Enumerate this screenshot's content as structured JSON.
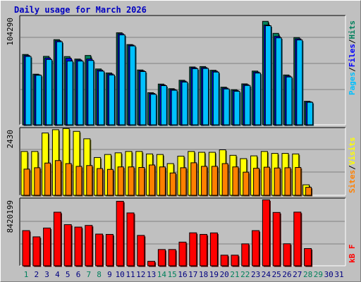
{
  "title": "Daily usage for March 2026",
  "colors": {
    "hits": "#00805c",
    "files": "#0000ff",
    "pages": "#00c0ff",
    "visits": "#ffff00",
    "sites": "#ff8000",
    "kbytes": "#ff0000",
    "plot_bg": "#c0c0c0",
    "weekend_label": "#00805c",
    "weekday_label": "#000080"
  },
  "chart_data": [
    {
      "type": "bar",
      "title": "Daily usage for March 2026",
      "x": [
        1,
        2,
        3,
        4,
        5,
        6,
        7,
        8,
        9,
        10,
        11,
        12,
        13,
        14,
        15,
        16,
        17,
        18,
        19,
        20,
        21,
        22,
        23,
        24,
        25,
        26,
        27,
        28,
        29,
        30,
        31
      ],
      "weekend_days": [
        1,
        7,
        8,
        14,
        15,
        21,
        22,
        28,
        29
      ],
      "ymax_label": "104290",
      "ylim": [
        0,
        104290
      ],
      "legend_labels": [
        "Pages",
        "/",
        "Files",
        "/",
        "Hits"
      ],
      "series": [
        {
          "name": "Hits",
          "values": [
            70300,
            50600,
            68400,
            85100,
            68200,
            65700,
            69300,
            55800,
            51800,
            92000,
            80200,
            54800,
            32100,
            40700,
            36100,
            44500,
            57800,
            58200,
            54500,
            37600,
            35100,
            40900,
            53700,
            103400,
            91400,
            49800,
            87200,
            23500,
            0,
            0,
            0
          ]
        },
        {
          "name": "Files",
          "values": [
            69300,
            50000,
            66800,
            84000,
            66500,
            64800,
            65800,
            54700,
            50800,
            91000,
            79600,
            54000,
            31300,
            39900,
            35300,
            43600,
            57000,
            57200,
            53600,
            36700,
            34300,
            40100,
            52700,
            99700,
            88300,
            48800,
            85900,
            23000,
            0,
            0,
            0
          ]
        },
        {
          "name": "Pages",
          "values": [
            68300,
            49500,
            65300,
            83000,
            63700,
            63700,
            64300,
            53600,
            49800,
            89900,
            78800,
            53200,
            30500,
            39100,
            34500,
            42700,
            56100,
            56300,
            52700,
            35800,
            33500,
            39300,
            51700,
            99000,
            86900,
            47800,
            84800,
            22500,
            0,
            0,
            0
          ]
        }
      ]
    },
    {
      "type": "bar",
      "x": [
        1,
        2,
        3,
        4,
        5,
        6,
        7,
        8,
        9,
        10,
        11,
        12,
        13,
        14,
        15,
        16,
        17,
        18,
        19,
        20,
        21,
        22,
        23,
        24,
        25,
        26,
        27,
        28,
        29,
        30,
        31
      ],
      "ymax_label": "2430",
      "ylim": [
        0,
        2430
      ],
      "legend_labels": [
        "Sites",
        "/",
        "Visits"
      ],
      "series": [
        {
          "name": "Visits",
          "values": [
            1590,
            1590,
            2260,
            2380,
            2420,
            2320,
            2050,
            1370,
            1480,
            1540,
            1590,
            1590,
            1500,
            1480,
            1150,
            1420,
            1590,
            1560,
            1560,
            1650,
            1450,
            1330,
            1430,
            1590,
            1520,
            1520,
            1500,
            380,
            0,
            0,
            0
          ]
        },
        {
          "name": "Sites",
          "values": [
            950,
            1000,
            1170,
            1260,
            1150,
            1050,
            1080,
            970,
            940,
            1030,
            1030,
            1010,
            1100,
            1030,
            810,
            1000,
            1180,
            1050,
            1050,
            1150,
            1030,
            840,
            980,
            1020,
            990,
            1000,
            1010,
            290,
            0,
            0,
            0
          ]
        }
      ]
    },
    {
      "type": "bar",
      "x": [
        1,
        2,
        3,
        4,
        5,
        6,
        7,
        8,
        9,
        10,
        11,
        12,
        13,
        14,
        15,
        16,
        17,
        18,
        19,
        20,
        21,
        22,
        23,
        24,
        25,
        26,
        27,
        28,
        29,
        30,
        31
      ],
      "ymax_label": "8420199",
      "ylim": [
        0,
        8420199
      ],
      "legend_labels": [
        "kB F"
      ],
      "series": [
        {
          "name": "kB F",
          "values": [
            4470000,
            3680000,
            4800000,
            6810000,
            5230000,
            4920000,
            5130000,
            4030000,
            3990000,
            8200000,
            6720000,
            3860000,
            570000,
            2070000,
            2070000,
            3010000,
            4190000,
            3990000,
            4180000,
            1350000,
            1350000,
            2790000,
            4470000,
            8380000,
            6780000,
            2800000,
            6820000,
            2190000,
            0,
            0,
            0
          ]
        }
      ]
    }
  ]
}
